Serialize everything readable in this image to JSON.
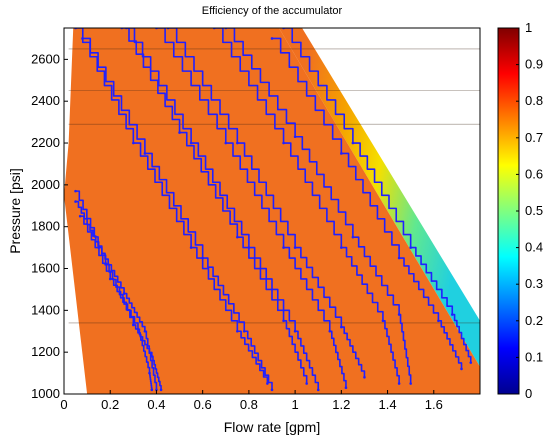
{
  "chart_data": {
    "type": "heatmap",
    "title": "Efficiency of the accumulator",
    "xlabel": "Flow rate [gpm]",
    "ylabel": "Pressure [psi]",
    "xlim": [
      0,
      1.8
    ],
    "ylim": [
      1000,
      2750
    ],
    "x_ticks": [
      "0",
      "0.2",
      "0.4",
      "0.6",
      "0.8",
      "1",
      "1.2",
      "1.4",
      "1.6"
    ],
    "y_ticks": [
      "1000",
      "1200",
      "1400",
      "1600",
      "1800",
      "2000",
      "2200",
      "2400",
      "2600"
    ],
    "colorbar": {
      "range": [
        0,
        1
      ],
      "ticks": [
        "0",
        "0.1",
        "0.2",
        "0.3",
        "0.4",
        "0.5",
        "0.6",
        "0.7",
        "0.8",
        "0.9",
        "1"
      ],
      "colormap": "jet"
    },
    "grid": false,
    "domain_boundary": {
      "left_edge": [
        [
          0.1,
          1000
        ],
        [
          0.0,
          1950
        ],
        [
          0.02,
          2200
        ],
        [
          0.04,
          2750
        ]
      ],
      "right_edge": [
        [
          0.93,
          2750
        ],
        [
          1.8,
          1130
        ]
      ]
    },
    "efficiency_surface": {
      "dominant_value": 0.8,
      "fade_band": [
        {
          "flow": 0.95,
          "efficiency": 0.78
        },
        {
          "flow": 1.12,
          "efficiency": 0.72
        },
        {
          "flow": 1.25,
          "efficiency": 0.62
        },
        {
          "flow": 1.35,
          "efficiency": 0.5
        },
        {
          "flow": 1.45,
          "efficiency": 0.4
        }
      ]
    },
    "contour_lines_psi": [
      1340,
      2290,
      2450,
      2650
    ],
    "series": [
      {
        "points": [
          [
            0.05,
            1970
          ],
          [
            0.18,
            1620
          ],
          [
            0.3,
            1330
          ],
          [
            0.38,
            1180
          ],
          [
            0.42,
            1020
          ]
        ]
      },
      {
        "points": [
          [
            0.05,
            1920
          ],
          [
            0.15,
            1700
          ],
          [
            0.26,
            1480
          ],
          [
            0.35,
            1300
          ],
          [
            0.4,
            1020
          ]
        ]
      },
      {
        "points": [
          [
            0.07,
            1850
          ],
          [
            0.2,
            1550
          ],
          [
            0.32,
            1310
          ],
          [
            0.37,
            1100
          ],
          [
            0.38,
            1020
          ]
        ]
      },
      {
        "points": [
          [
            0.05,
            2750
          ],
          [
            0.3,
            2200
          ],
          [
            0.55,
            1700
          ],
          [
            0.75,
            1300
          ],
          [
            0.88,
            1050
          ]
        ]
      },
      {
        "points": [
          [
            0.08,
            2700
          ],
          [
            0.35,
            2150
          ],
          [
            0.6,
            1650
          ],
          [
            0.78,
            1300
          ],
          [
            0.9,
            1020
          ]
        ]
      },
      {
        "points": [
          [
            0.25,
            2750
          ],
          [
            0.5,
            2250
          ],
          [
            0.75,
            1750
          ],
          [
            0.95,
            1350
          ],
          [
            1.05,
            1050
          ]
        ]
      },
      {
        "points": [
          [
            0.27,
            2750
          ],
          [
            0.55,
            2200
          ],
          [
            0.8,
            1700
          ],
          [
            1.0,
            1300
          ],
          [
            1.1,
            1020
          ]
        ]
      },
      {
        "points": [
          [
            0.4,
            2750
          ],
          [
            0.7,
            2200
          ],
          [
            0.95,
            1700
          ],
          [
            1.15,
            1300
          ],
          [
            1.22,
            1030
          ]
        ]
      },
      {
        "points": [
          [
            0.45,
            2750
          ],
          [
            0.75,
            2200
          ],
          [
            1.0,
            1700
          ],
          [
            1.2,
            1320
          ],
          [
            1.3,
            1080
          ]
        ]
      },
      {
        "points": [
          [
            0.65,
            2750
          ],
          [
            0.95,
            2200
          ],
          [
            1.2,
            1700
          ],
          [
            1.38,
            1350
          ],
          [
            1.45,
            1050
          ]
        ]
      },
      {
        "points": [
          [
            0.7,
            2750
          ],
          [
            1.0,
            2230
          ],
          [
            1.25,
            1750
          ],
          [
            1.45,
            1380
          ],
          [
            1.5,
            1050
          ]
        ]
      },
      {
        "points": [
          [
            0.9,
            2700
          ],
          [
            1.2,
            2150
          ],
          [
            1.45,
            1650
          ],
          [
            1.62,
            1350
          ],
          [
            1.72,
            1120
          ]
        ]
      },
      {
        "points": [
          [
            0.95,
            2750
          ],
          [
            1.25,
            2200
          ],
          [
            1.5,
            1700
          ],
          [
            1.68,
            1380
          ],
          [
            1.76,
            1150
          ]
        ]
      }
    ]
  }
}
